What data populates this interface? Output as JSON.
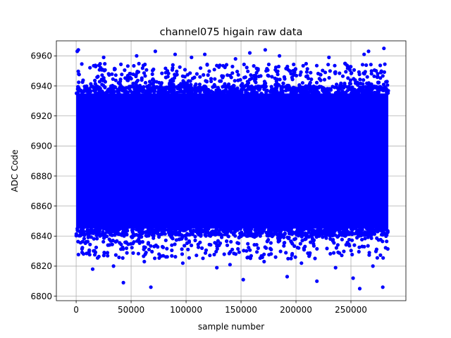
{
  "chart_data": {
    "type": "scatter",
    "title": "channel075 higain raw data",
    "xlabel": "sample number",
    "ylabel": "ADC Code",
    "xlim": [
      -18000,
      300000
    ],
    "ylim": [
      6797,
      6970
    ],
    "xticks": [
      0,
      50000,
      100000,
      150000,
      200000,
      250000
    ],
    "xtick_labels": [
      "0",
      "50000",
      "100000",
      "150000",
      "200000",
      "250000"
    ],
    "yticks": [
      6800,
      6820,
      6840,
      6860,
      6880,
      6900,
      6920,
      6940,
      6960
    ],
    "ytick_labels": [
      "6800",
      "6820",
      "6840",
      "6860",
      "6880",
      "6900",
      "6920",
      "6940",
      "6960"
    ],
    "grid": true,
    "marker": "o",
    "color": "#0000ff",
    "series": [
      {
        "x_range": [
          0,
          284000
        ],
        "dense_band": [
          6845,
          6935
        ],
        "sparse_band": [
          6825,
          6955
        ],
        "outliers": [
          [
            1000,
            6963
          ],
          [
            2000,
            6964
          ],
          [
            43000,
            6809
          ],
          [
            68000,
            6806
          ],
          [
            72000,
            6963
          ],
          [
            90000,
            6961
          ],
          [
            117000,
            6961
          ],
          [
            152000,
            6811
          ],
          [
            158000,
            6962
          ],
          [
            172000,
            6964
          ],
          [
            192000,
            6813
          ],
          [
            219000,
            6810
          ],
          [
            252000,
            6812
          ],
          [
            258000,
            6805
          ],
          [
            266000,
            6963
          ],
          [
            279000,
            6806
          ],
          [
            280000,
            6965
          ],
          [
            15000,
            6818
          ],
          [
            34000,
            6820
          ],
          [
            62000,
            6823
          ],
          [
            97000,
            6822
          ],
          [
            128000,
            6819
          ],
          [
            140000,
            6821
          ],
          [
            171000,
            6823
          ],
          [
            205000,
            6822
          ],
          [
            236000,
            6819
          ],
          [
            270000,
            6820
          ],
          [
            25000,
            6959
          ],
          [
            55000,
            6960
          ],
          [
            105000,
            6959
          ],
          [
            145000,
            6958
          ],
          [
            185000,
            6960
          ],
          [
            230000,
            6959
          ],
          [
            262000,
            6961
          ]
        ]
      }
    ]
  }
}
